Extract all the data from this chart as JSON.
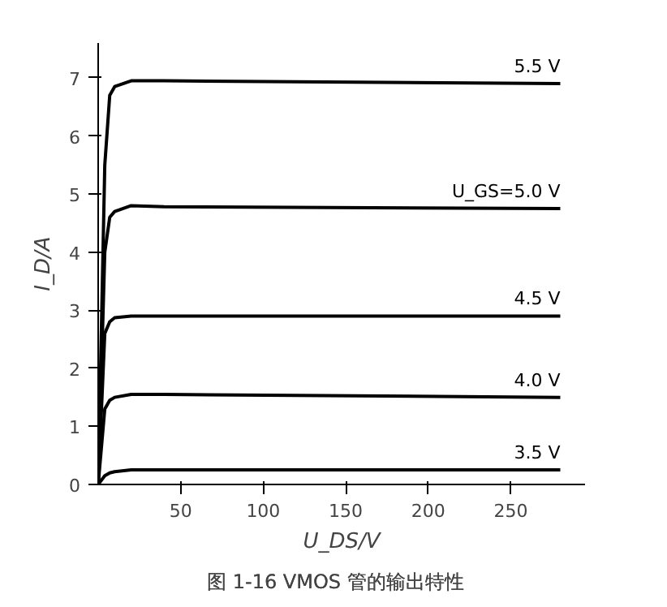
{
  "chart_data": {
    "type": "line",
    "title": "图 1-16   VMOS 管的输出特性",
    "xlabel": "U_DS/V",
    "ylabel": "I_D/A",
    "xlim": [
      0,
      295
    ],
    "ylim": [
      0,
      7.6
    ],
    "xticks": [
      50,
      100,
      150,
      200,
      250
    ],
    "yticks": [
      0,
      1,
      2,
      3,
      4,
      5,
      6,
      7
    ],
    "grid": false,
    "marker": "none",
    "line_style": "solid",
    "series": [
      {
        "name": "5.5 V",
        "color": "#000000",
        "x": [
          0,
          4,
          7,
          10,
          20,
          40,
          280
        ],
        "values": [
          0,
          5.5,
          6.7,
          6.85,
          6.95,
          6.95,
          6.9
        ]
      },
      {
        "name": "U_GS=5.0 V",
        "color": "#000000",
        "x": [
          0,
          4,
          7,
          10,
          20,
          40,
          280
        ],
        "values": [
          0,
          4.0,
          4.6,
          4.7,
          4.8,
          4.78,
          4.75
        ]
      },
      {
        "name": "4.5 V",
        "color": "#000000",
        "x": [
          0,
          4,
          7,
          10,
          20,
          40,
          280
        ],
        "values": [
          0,
          2.6,
          2.8,
          2.87,
          2.9,
          2.9,
          2.9
        ]
      },
      {
        "name": "4.0 V",
        "color": "#000000",
        "x": [
          0,
          4,
          7,
          10,
          20,
          40,
          280
        ],
        "values": [
          0,
          1.3,
          1.45,
          1.5,
          1.55,
          1.55,
          1.5
        ]
      },
      {
        "name": "3.5 V",
        "color": "#000000",
        "x": [
          0,
          4,
          7,
          10,
          20,
          40,
          280
        ],
        "values": [
          0,
          0.15,
          0.2,
          0.22,
          0.25,
          0.25,
          0.25
        ]
      }
    ]
  }
}
